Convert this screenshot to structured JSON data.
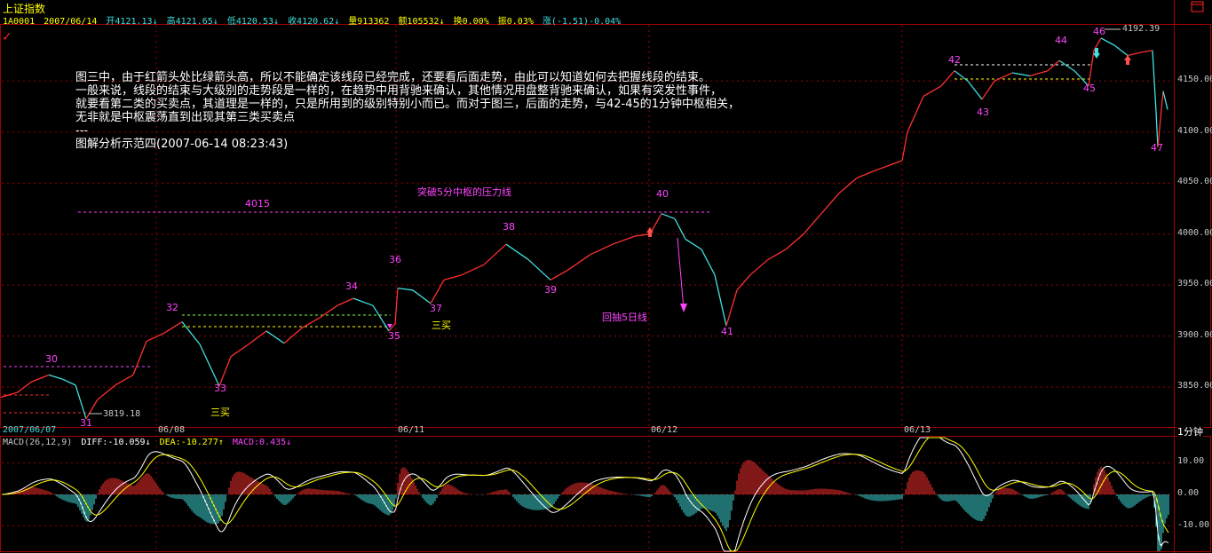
{
  "window": {
    "title": "上证指数"
  },
  "info_bar": {
    "code": "1A0001",
    "date": "2007/06/14",
    "open": "开4121.13",
    "high": "高4121.65",
    "low": "低4120.53",
    "close": "收4120.62",
    "volume": "量913362",
    "amount": "额105532",
    "turnover": "换0.00%",
    "amplitude": "振0.03%",
    "change": "涨(-1.51)-0.04%"
  },
  "annotation": {
    "lines": [
      "图三中，由于红箭头处比绿箭头高，所以不能确定该线段已经完成，还要看后面走势，由此可以知道如何去把握线段的结束。",
      "一般来说，线段的结束与大级别的走势段是一样的，在趋势中用背驰来确认，其他情况用盘整背驰来确认，如果有突发性事件，",
      "就要看第二类的买卖点，其道理是一样的，只是所用到的级别特别小而已。而对于图三，后面的走势，与42-45的1分钟中枢相关，",
      "无非就是中枢震荡直到出现其第三类买卖点",
      "---",
      "图解分析示范四(2007-06-14 08:23:43)"
    ]
  },
  "chart_labels": {
    "pressure_line": "突破5分中枢的压力线",
    "pressure_value": "4015",
    "pullback": "回抽5日线",
    "third_buy_1": "三买",
    "third_buy_2": "三买",
    "low_price": "3819.18",
    "high_price": "4192.39",
    "period": "1分钟"
  },
  "macd": {
    "name": "MACD(26,12,9)",
    "diff": "DIFF:-10.059",
    "dea": "DEA:-10.277",
    "macd": "MACD:0.435"
  },
  "colors": {
    "up": "#ff3030",
    "down": "#40e0e0",
    "grid": "#a00000",
    "label": "#ff44ff",
    "axis_text": "#c8c8c8",
    "diff_line": "#ffffff",
    "dea_line": "#ffff00"
  },
  "chart_data": [
    {
      "type": "line",
      "title": "上证指数",
      "x_labels": [
        "2007/06/07",
        "06/08",
        "06/11",
        "06/12",
        "06/13"
      ],
      "y_ticks": [
        3850,
        3900,
        3950,
        4000,
        4050,
        4100,
        4150
      ],
      "ylim": [
        3811,
        4205
      ],
      "grid": true,
      "points": [
        {
          "x": 1,
          "y": 3840
        },
        {
          "x": 20,
          "y": 3845
        },
        {
          "x": 35,
          "y": 3855
        },
        {
          "x": 55,
          "y": 3862
        },
        {
          "x": 70,
          "y": 3858
        },
        {
          "x": 85,
          "y": 3852
        },
        {
          "x": 97,
          "y": 3819
        },
        {
          "x": 110,
          "y": 3838
        },
        {
          "x": 130,
          "y": 3852
        },
        {
          "x": 150,
          "y": 3862
        },
        {
          "x": 165,
          "y": 3895
        },
        {
          "x": 185,
          "y": 3903
        },
        {
          "x": 205,
          "y": 3914
        },
        {
          "x": 225,
          "y": 3892
        },
        {
          "x": 247,
          "y": 3851
        },
        {
          "x": 260,
          "y": 3880
        },
        {
          "x": 280,
          "y": 3892
        },
        {
          "x": 300,
          "y": 3905
        },
        {
          "x": 320,
          "y": 3893
        },
        {
          "x": 340,
          "y": 3908
        },
        {
          "x": 360,
          "y": 3918
        },
        {
          "x": 380,
          "y": 3930
        },
        {
          "x": 398,
          "y": 3937
        },
        {
          "x": 420,
          "y": 3930
        },
        {
          "x": 438,
          "y": 3905
        },
        {
          "x": 445,
          "y": 3912
        },
        {
          "x": 448,
          "y": 3947
        },
        {
          "x": 465,
          "y": 3945
        },
        {
          "x": 485,
          "y": 3932
        },
        {
          "x": 500,
          "y": 3955
        },
        {
          "x": 520,
          "y": 3960
        },
        {
          "x": 545,
          "y": 3970
        },
        {
          "x": 570,
          "y": 3990
        },
        {
          "x": 595,
          "y": 3975
        },
        {
          "x": 620,
          "y": 3955
        },
        {
          "x": 640,
          "y": 3965
        },
        {
          "x": 665,
          "y": 3980
        },
        {
          "x": 690,
          "y": 3990
        },
        {
          "x": 715,
          "y": 3998
        },
        {
          "x": 732,
          "y": 4000
        },
        {
          "x": 745,
          "y": 4020
        },
        {
          "x": 760,
          "y": 4015
        },
        {
          "x": 772,
          "y": 3995
        },
        {
          "x": 790,
          "y": 3985
        },
        {
          "x": 805,
          "y": 3960
        },
        {
          "x": 818,
          "y": 3910
        },
        {
          "x": 830,
          "y": 3945
        },
        {
          "x": 845,
          "y": 3960
        },
        {
          "x": 865,
          "y": 3975
        },
        {
          "x": 885,
          "y": 3985
        },
        {
          "x": 905,
          "y": 4000
        },
        {
          "x": 925,
          "y": 4020
        },
        {
          "x": 945,
          "y": 4040
        },
        {
          "x": 965,
          "y": 4055
        },
        {
          "x": 985,
          "y": 4062
        },
        {
          "x": 1016,
          "y": 4072
        },
        {
          "x": 1022,
          "y": 4100
        },
        {
          "x": 1040,
          "y": 4135
        },
        {
          "x": 1060,
          "y": 4145
        },
        {
          "x": 1075,
          "y": 4160
        },
        {
          "x": 1090,
          "y": 4150
        },
        {
          "x": 1106,
          "y": 4132
        },
        {
          "x": 1120,
          "y": 4150
        },
        {
          "x": 1140,
          "y": 4158
        },
        {
          "x": 1160,
          "y": 4155
        },
        {
          "x": 1180,
          "y": 4160
        },
        {
          "x": 1193,
          "y": 4170
        },
        {
          "x": 1210,
          "y": 4160
        },
        {
          "x": 1226,
          "y": 4145
        },
        {
          "x": 1232,
          "y": 4180
        },
        {
          "x": 1240,
          "y": 4192
        },
        {
          "x": 1255,
          "y": 4185
        },
        {
          "x": 1270,
          "y": 4175
        },
        {
          "x": 1285,
          "y": 4178
        },
        {
          "x": 1298,
          "y": 4180
        },
        {
          "x": 1302,
          "y": 4120
        },
        {
          "x": 1304,
          "y": 4085
        },
        {
          "x": 1310,
          "y": 4140
        },
        {
          "x": 1315,
          "y": 4122
        }
      ],
      "segment_labels": [
        "30",
        "31",
        "32",
        "33",
        "34",
        "35",
        "36",
        "37",
        "38",
        "39",
        "40",
        "41",
        "42",
        "43",
        "44",
        "45",
        "46",
        "47"
      ]
    },
    {
      "type": "bar",
      "title": "MACD(26,12,9)",
      "y_ticks": [
        10,
        0,
        -10
      ],
      "ylim": [
        -18,
        18
      ],
      "series": [
        {
          "name": "DIFF",
          "value": -10.059
        },
        {
          "name": "DEA",
          "value": -10.277
        },
        {
          "name": "MACD",
          "value": 0.435
        }
      ]
    }
  ]
}
